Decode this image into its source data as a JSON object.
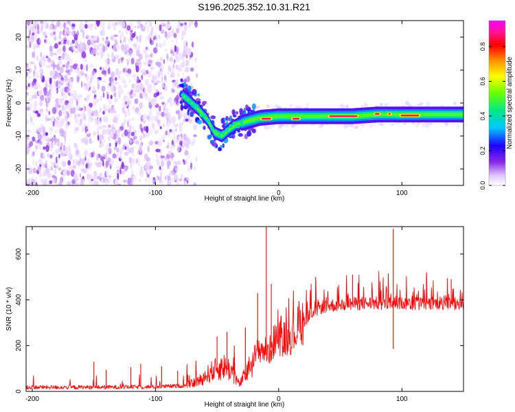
{
  "title": "S196.2025.352.10.31.R21",
  "chart_data": [
    {
      "type": "heatmap",
      "xlabel": "Height of straight line (km)",
      "ylabel": "Frequency (Hz)",
      "xlim": [
        -205,
        150
      ],
      "ylim": [
        -25,
        25
      ],
      "xticks": [
        -200,
        -100,
        0,
        100
      ],
      "yticks": [
        -20,
        -10,
        0,
        10,
        20
      ],
      "xtick_labels": [
        "-200",
        "-100",
        "0",
        "100"
      ],
      "ytick_labels": [
        "-20",
        "-10",
        "0",
        "10",
        "20"
      ],
      "colorbar": {
        "label": "Normalized spectral amplitude",
        "range": [
          0,
          0.95
        ],
        "ticks": [
          0,
          0.2,
          0.4,
          0.6,
          0.8
        ],
        "tick_labels": [
          "0.0",
          "0.2",
          "0.4",
          "0.6",
          "0.8"
        ],
        "colors": [
          "#ffffff",
          "#e0c6ff",
          "#8a2be2",
          "#2000ff",
          "#00c8ff",
          "#00e68c",
          "#66ff00",
          "#ffff00",
          "#ff8c00",
          "#ff0000",
          "#ff1493",
          "#ff00ff"
        ]
      },
      "noise_region": {
        "x_range": [
          -205,
          -65
        ],
        "f_range": [
          -25,
          25
        ],
        "typical_amplitude": 0.1
      },
      "signal_track": {
        "points": [
          {
            "x": -80,
            "f": 3
          },
          {
            "x": -72,
            "f": 0.5
          },
          {
            "x": -65,
            "f": -2
          },
          {
            "x": -58,
            "f": -5
          },
          {
            "x": -52,
            "f": -9
          },
          {
            "x": -46,
            "f": -10
          },
          {
            "x": -40,
            "f": -8
          },
          {
            "x": -34,
            "f": -6.5
          },
          {
            "x": -25,
            "f": -5.5
          },
          {
            "x": -15,
            "f": -4.5
          },
          {
            "x": 0,
            "f": -4
          },
          {
            "x": 20,
            "f": -4
          },
          {
            "x": 40,
            "f": -4
          },
          {
            "x": 60,
            "f": -4
          },
          {
            "x": 80,
            "f": -3.5
          },
          {
            "x": 100,
            "f": -3.5
          },
          {
            "x": 120,
            "f": -3.5
          },
          {
            "x": 150,
            "f": -3.5
          }
        ],
        "peak_segments": [
          {
            "x_from": -15,
            "x_to": -5,
            "f": -4.8
          },
          {
            "x_from": 10,
            "x_to": 18,
            "f": -4.8
          },
          {
            "x_from": 40,
            "x_to": 65,
            "f": -4
          },
          {
            "x_from": 77,
            "x_to": 83,
            "f": -3.3
          },
          {
            "x_from": 88,
            "x_to": 92,
            "f": -3.3
          },
          {
            "x_from": 98,
            "x_to": 115,
            "f": -3.8
          }
        ]
      }
    },
    {
      "type": "line",
      "xlabel": "Height of straight line (km)",
      "ylabel": "SNR (10 * v/v)",
      "xlim": [
        -205,
        150
      ],
      "ylim": [
        0,
        720
      ],
      "xticks": [
        -200,
        -100,
        0,
        100
      ],
      "yticks": [
        0,
        200,
        400,
        600
      ],
      "xtick_labels": [
        "-200",
        "-100",
        "0",
        "100"
      ],
      "ytick_labels": [
        "0",
        "200",
        "400",
        "600"
      ],
      "series": [
        {
          "name": "SNR",
          "color": "#ff0000",
          "baseline": [
            {
              "x": -205,
              "y": 18
            },
            {
              "x": -150,
              "y": 18
            },
            {
              "x": -100,
              "y": 20
            },
            {
              "x": -75,
              "y": 25
            },
            {
              "x": -65,
              "y": 45
            },
            {
              "x": -55,
              "y": 85
            },
            {
              "x": -45,
              "y": 110
            },
            {
              "x": -38,
              "y": 90
            },
            {
              "x": -32,
              "y": 30
            },
            {
              "x": -25,
              "y": 90
            },
            {
              "x": -20,
              "y": 150
            },
            {
              "x": -15,
              "y": 190
            },
            {
              "x": -8,
              "y": 170
            },
            {
              "x": -2,
              "y": 240
            },
            {
              "x": 5,
              "y": 230
            },
            {
              "x": 12,
              "y": 250
            },
            {
              "x": 18,
              "y": 300
            },
            {
              "x": 25,
              "y": 330
            },
            {
              "x": 35,
              "y": 370
            },
            {
              "x": 50,
              "y": 380
            },
            {
              "x": 70,
              "y": 385
            },
            {
              "x": 90,
              "y": 385
            },
            {
              "x": 110,
              "y": 385
            },
            {
              "x": 130,
              "y": 385
            },
            {
              "x": 150,
              "y": 380
            }
          ],
          "spikes": [
            {
              "x": -150,
              "y": 130
            },
            {
              "x": -140,
              "y": 95
            },
            {
              "x": -120,
              "y": 105
            },
            {
              "x": -112,
              "y": 120
            },
            {
              "x": -95,
              "y": 110
            },
            {
              "x": -82,
              "y": 90
            },
            {
              "x": -50,
              "y": 240
            },
            {
              "x": -42,
              "y": 260
            },
            {
              "x": -36,
              "y": 200
            },
            {
              "x": -27,
              "y": 280
            },
            {
              "x": -17,
              "y": 430
            },
            {
              "x": -10,
              "y": 720
            },
            {
              "x": -6,
              "y": 470
            },
            {
              "x": 2,
              "y": 330
            },
            {
              "x": 30,
              "y": 500
            },
            {
              "x": 60,
              "y": 510
            },
            {
              "x": 93,
              "y": 710
            },
            {
              "x": 93,
              "y": 185
            },
            {
              "x": 120,
              "y": 520
            },
            {
              "x": 140,
              "y": 490
            }
          ]
        }
      ]
    }
  ]
}
